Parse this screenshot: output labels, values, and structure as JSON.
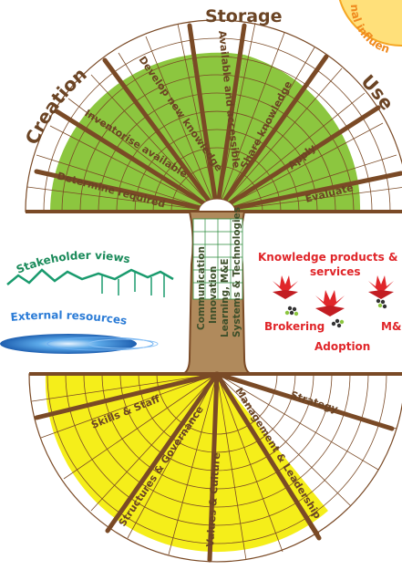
{
  "top_section": {
    "titles": {
      "creation": "Creation",
      "storage": "Storage",
      "use": "Use"
    },
    "spokes": [
      "Determine required",
      "Inventorise available",
      "Develop new knowledge",
      "Available and accessible",
      "Share knowledge",
      "Apply",
      "Evaluate"
    ]
  },
  "stem": {
    "labels": [
      "Communication",
      "Innovation",
      "Learning, M&E",
      "Systems & Technologies"
    ]
  },
  "bottom_section": {
    "spokes": [
      "Skills & Staff",
      "Structures & Governance",
      "Values & Culture",
      "Management & Leadership",
      "Strategy"
    ]
  },
  "left_side": {
    "stakeholder_views": "Stakeholder views",
    "external_resources": "External resources"
  },
  "right_side": {
    "knowledge_products": "Knowledge products &",
    "services": "services",
    "brokering": "Brokering",
    "me": "M&",
    "adoption": "Adoption"
  },
  "corner_partial": "nal influen",
  "colors": {
    "brown": "#7a4a26",
    "green": "#8cc63f",
    "yellow": "#f5ee1a",
    "stem": "#b08a5c",
    "red": "#e0262a",
    "teal": "#1a9b6e",
    "blue": "#2a7bd6",
    "orange": "#f08a1e"
  }
}
